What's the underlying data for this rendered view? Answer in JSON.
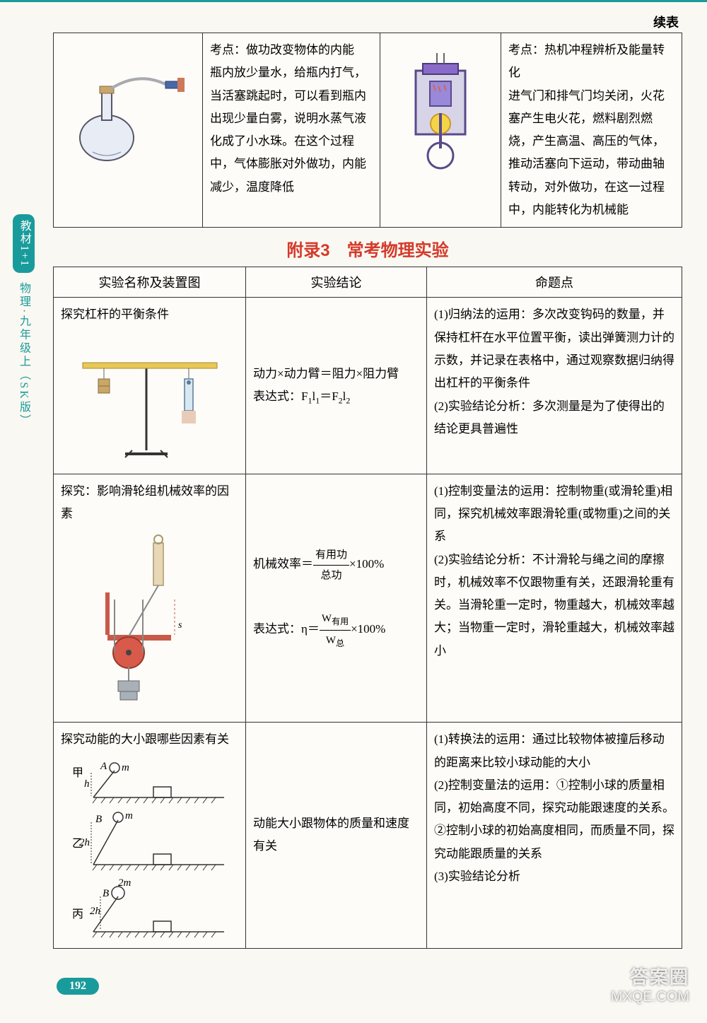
{
  "continue_label": "续表",
  "top_table": {
    "left_text": "考点：做功改变物体的内能\n瓶内放少量水，给瓶内打气，当活塞跳起时，可以看到瓶内出现少量白雾，说明水蒸气液化成了小水珠。在这个过程中，气体膨胀对外做功，内能减少，温度降低",
    "right_text": "考点：热机冲程辨析及能量转化\n进气门和排气门均关闭，火花塞产生电火花，燃料剧烈燃烧，产生高温、高压的气体，推动活塞向下运动，带动曲轴转动，对外做功，在这一过程中，内能转化为机械能"
  },
  "section_title": "附录3　常考物理实验",
  "headers": {
    "c1": "实验名称及装置图",
    "c2": "实验结论",
    "c3": "命题点"
  },
  "rows": [
    {
      "name": "探究杠杆的平衡条件",
      "conclusion_html": "动力×动力臂＝阻力×阻力臂<br>表达式：F<sub>1</sub>l<sub>1</sub>＝F<sub>2</sub>l<sub>2</sub>",
      "points": "(1)归纳法的运用：多次改变钩码的数量，并保持杠杆在水平位置平衡，读出弹簧测力计的示数，并记录在表格中，通过观察数据归纳得出杠杆的平衡条件\n(2)实验结论分析：多次测量是为了使得出的结论更具普遍性"
    },
    {
      "name": "探究：影响滑轮组机械效率的因素",
      "conclusion_html": "机械效率＝<span class='frac'><span class='num'>有用功</span><span class='den'>总功</span></span>×100%<br><br>表达式：η＝<span class='frac'><span class='num'>W<sub>有用</sub></span><span class='den'>W<sub>总</sub></span></span>×100%",
      "points": "(1)控制变量法的运用：控制物重(或滑轮重)相同，探究机械效率跟滑轮重(或物重)之间的关系\n(2)实验结论分析：不计滑轮与绳之间的摩擦时，机械效率不仅跟物重有关，还跟滑轮重有关。当滑轮重一定时，物重越大，机械效率越大；当物重一定时，滑轮重越大，机械效率越小"
    },
    {
      "name": "探究动能的大小跟哪些因素有关",
      "conclusion_html": "动能大小跟物体的质量和速度有关",
      "points": "(1)转换法的运用：通过比较物体被撞后移动的距离来比较小球动能的大小\n(2)控制变量法的运用：①控制小球的质量相同，初始高度不同，探究动能跟速度的关系。②控制小球的初始高度相同，而质量不同，探究动能跟质量的关系\n(3)实验结论分析"
    }
  ],
  "side": {
    "tab1": "教材1+1",
    "tab2": "物理·九年级上（SK版）"
  },
  "page_num": "192",
  "wm": {
    "l1": "答案圈",
    "l2": "MXQE.COM"
  },
  "colors": {
    "accent": "#1a9b9b",
    "title": "#d43a2a",
    "border": "#333333",
    "bg": "#faf8f2"
  }
}
